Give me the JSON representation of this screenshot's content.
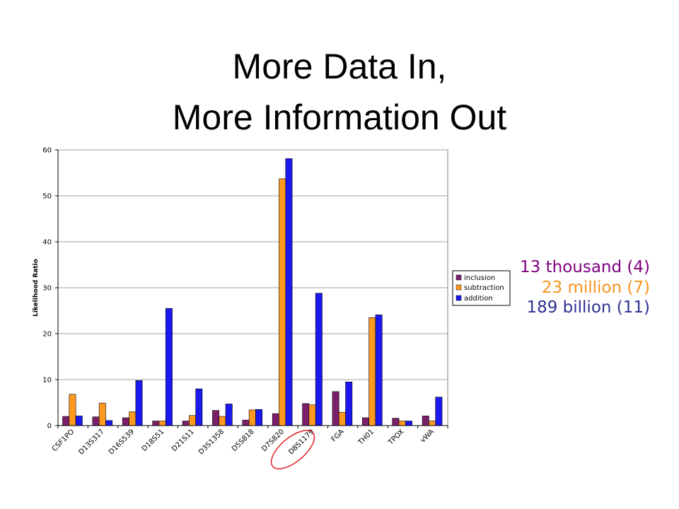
{
  "title": {
    "line1": "More Data In,",
    "line2": "More Information Out"
  },
  "summary": [
    {
      "text": "13 thousand (4)",
      "color": "#800080"
    },
    {
      "text": "23 million (7)",
      "color": "#f79320"
    },
    {
      "text": "189 billion (11)",
      "color": "#2e3192"
    }
  ],
  "highlight": {
    "category": "D8S1179",
    "color": "#e0202a"
  },
  "chart_data": {
    "type": "bar",
    "ylabel": "Likelihood Ratio",
    "xlabel": "",
    "ylim": [
      0,
      60
    ],
    "yticks": [
      0,
      10,
      20,
      30,
      40,
      50,
      60
    ],
    "grid": true,
    "legend_position": "right",
    "categories": [
      "CSF1PO",
      "D13S317",
      "D16S539",
      "D18S51",
      "D21S11",
      "D3S1358",
      "D5S818",
      "D7S820",
      "D8S1179",
      "FGA",
      "TH01",
      "TPOX",
      "vWA"
    ],
    "series": [
      {
        "name": "inclusion",
        "color": "#7b1f6b",
        "values": [
          2.0,
          1.9,
          1.7,
          1.0,
          1.0,
          3.3,
          1.2,
          2.6,
          4.8,
          7.4,
          1.7,
          1.6,
          2.1
        ]
      },
      {
        "name": "subtraction",
        "color": "#ff9a21",
        "values": [
          6.8,
          4.9,
          3.0,
          1.0,
          2.2,
          2.0,
          3.4,
          53.7,
          4.5,
          2.9,
          23.5,
          1.0,
          1.0
        ]
      },
      {
        "name": "addition",
        "color": "#1c18f0",
        "values": [
          2.1,
          1.1,
          9.8,
          25.5,
          8.0,
          4.7,
          3.5,
          58.1,
          28.8,
          9.5,
          24.1,
          1.0,
          6.2
        ]
      }
    ]
  }
}
